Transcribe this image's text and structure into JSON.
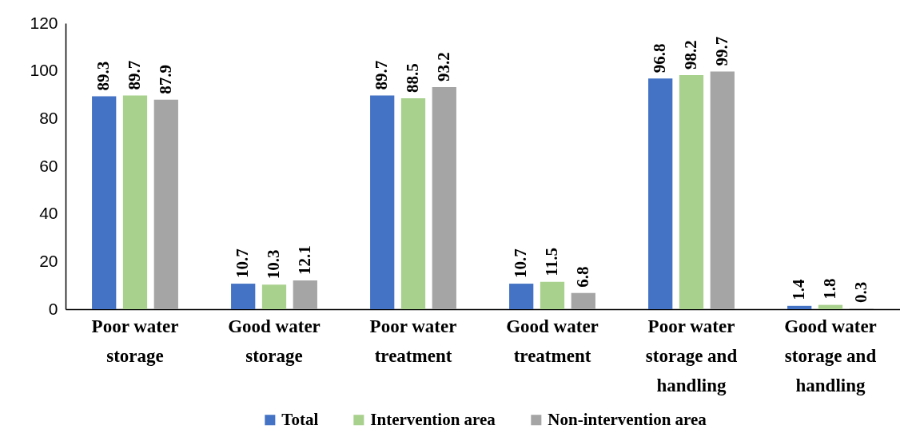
{
  "chart_data": {
    "type": "bar",
    "categories": [
      "Poor water storage",
      "Good water storage",
      "Poor water treatment",
      "Good water treatment",
      "Poor water storage and handling",
      "Good water storage and handling"
    ],
    "series": [
      {
        "name": "Total",
        "color": "#4472c4",
        "values": [
          89.3,
          10.7,
          89.7,
          10.7,
          96.8,
          1.4
        ]
      },
      {
        "name": "Intervention area",
        "color": "#a9d18e",
        "values": [
          89.7,
          10.3,
          88.5,
          11.5,
          98.2,
          1.8
        ]
      },
      {
        "name": "Non-intervention area",
        "color": "#a5a5a5",
        "values": [
          87.9,
          12.1,
          93.2,
          6.8,
          99.7,
          0.3
        ]
      }
    ],
    "ylim": [
      0,
      120
    ],
    "yticks": [
      0,
      20,
      40,
      60,
      80,
      100,
      120
    ],
    "data_labels": true,
    "legend": "bottom"
  }
}
